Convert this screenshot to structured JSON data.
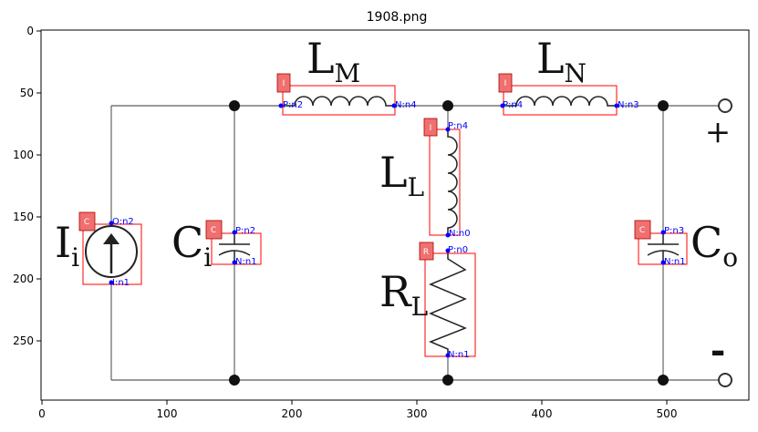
{
  "figure": {
    "title": "1908.png",
    "x_ticks": [
      "0",
      "100",
      "200",
      "300",
      "400",
      "500"
    ],
    "y_ticks": [
      "0",
      "50",
      "100",
      "150",
      "200",
      "250"
    ]
  },
  "symbols": {
    "LM": {
      "main": "L",
      "sub": "M"
    },
    "LN": {
      "main": "L",
      "sub": "N"
    },
    "LL": {
      "main": "L",
      "sub": "L"
    },
    "RL": {
      "main": "R",
      "sub": "L"
    },
    "Ii": {
      "main": "I",
      "sub": "i"
    },
    "Ci": {
      "main": "C",
      "sub": "i"
    },
    "Co": {
      "main": "C",
      "sub": "o"
    },
    "plus": "+",
    "minus": "-"
  },
  "components": {
    "LM": {
      "tag": "I",
      "pin_left": "P:n2",
      "pin_right": "N:n4"
    },
    "LN": {
      "tag": "I",
      "pin_left": "P:n4",
      "pin_right": "N:n3"
    },
    "LL": {
      "tag": "I",
      "pin_top": "P:n4",
      "pin_bottom": "N:n0"
    },
    "RL": {
      "tag": "R",
      "pin_top": "P:n0",
      "pin_bottom": "N:n1"
    },
    "Ii": {
      "tag": "C",
      "pin_top": "O:n2",
      "pin_bottom": "I:n1"
    },
    "Ci": {
      "tag": "C",
      "pin_top": "P:n2",
      "pin_bottom": "N:n1"
    },
    "Co": {
      "tag": "C",
      "pin_top": "P:n3",
      "pin_bottom": "N:n1"
    }
  },
  "colors": {
    "box": "#ff0000",
    "tag_fill": "#f07070",
    "pin": "#0000ff",
    "wire": "#aaaaaa"
  }
}
